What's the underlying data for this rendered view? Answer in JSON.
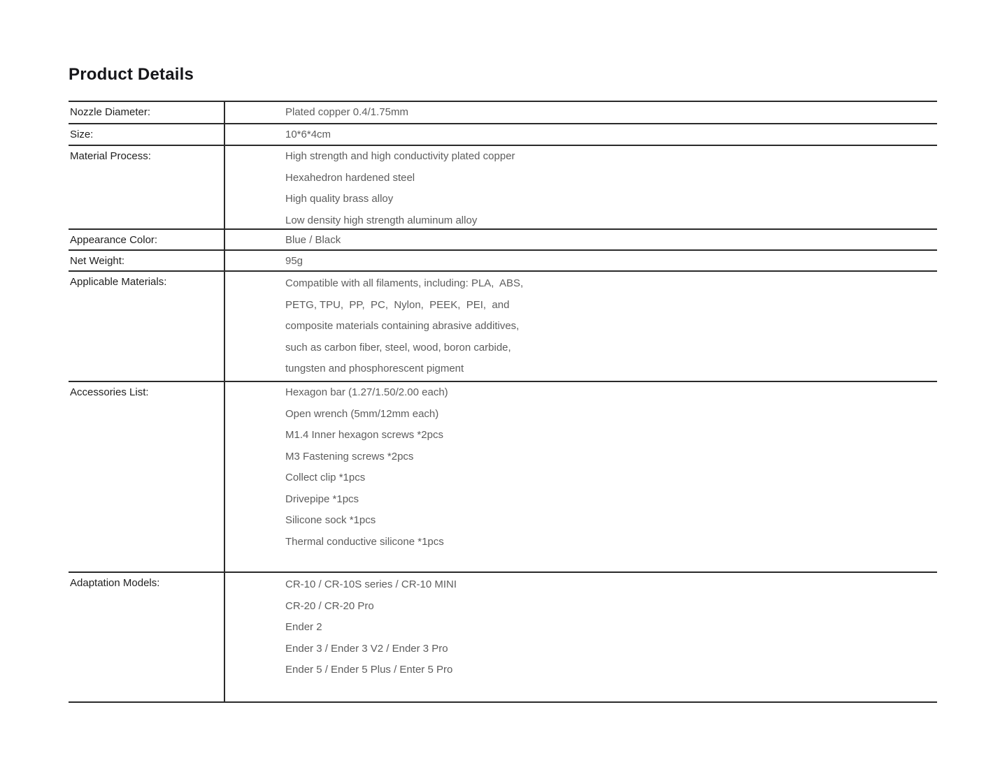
{
  "section": {
    "title": "Product Details"
  },
  "colors": {
    "background": "#ffffff",
    "title_text": "#16161a",
    "label_text": "#1f1f1f",
    "value_text": "#5d5d5d",
    "rule_lines": "#2a2a2a"
  },
  "table": {
    "rows": [
      {
        "label": "Nozzle Diameter:",
        "values": [
          "Plated copper 0.4/1.75mm"
        ]
      },
      {
        "label": "Size:",
        "values": [
          "10*6*4cm"
        ]
      },
      {
        "label": "Material Process:",
        "values": [
          "High strength and high conductivity plated copper",
          "Hexahedron hardened steel",
          "High quality brass alloy",
          "Low density high strength aluminum alloy"
        ]
      },
      {
        "label": "Appearance Color:",
        "values": [
          "Blue / Black"
        ]
      },
      {
        "label": "Net Weight:",
        "values": [
          "95g"
        ]
      },
      {
        "label": "Applicable Materials:",
        "values": [
          "Compatible with all filaments, including: PLA,  ABS,",
          "PETG, TPU,  PP,  PC,  Nylon,  PEEK,  PEI,  and",
          "composite materials containing abrasive additives,",
          "such as carbon fiber, steel, wood, boron carbide,",
          "tungsten and phosphorescent pigment"
        ]
      },
      {
        "label": "Accessories List:",
        "values": [
          "Hexagon bar (1.27/1.50/2.00 each)",
          "Open wrench (5mm/12mm each)",
          "M1.4 Inner hexagon screws *2pcs",
          "M3 Fastening screws *2pcs",
          "Collect clip *1pcs",
          "Drivepipe *1pcs",
          "Silicone sock *1pcs",
          "Thermal conductive silicone *1pcs"
        ]
      },
      {
        "label": "Adaptation Models:",
        "values": [
          "CR-10 / CR-10S series / CR-10 MINI",
          "CR-20 / CR-20 Pro",
          "Ender 2",
          "Ender 3 / Ender 3 V2 / Ender 3 Pro",
          "Ender 5 / Ender 5 Plus / Enter 5 Pro"
        ]
      }
    ]
  }
}
